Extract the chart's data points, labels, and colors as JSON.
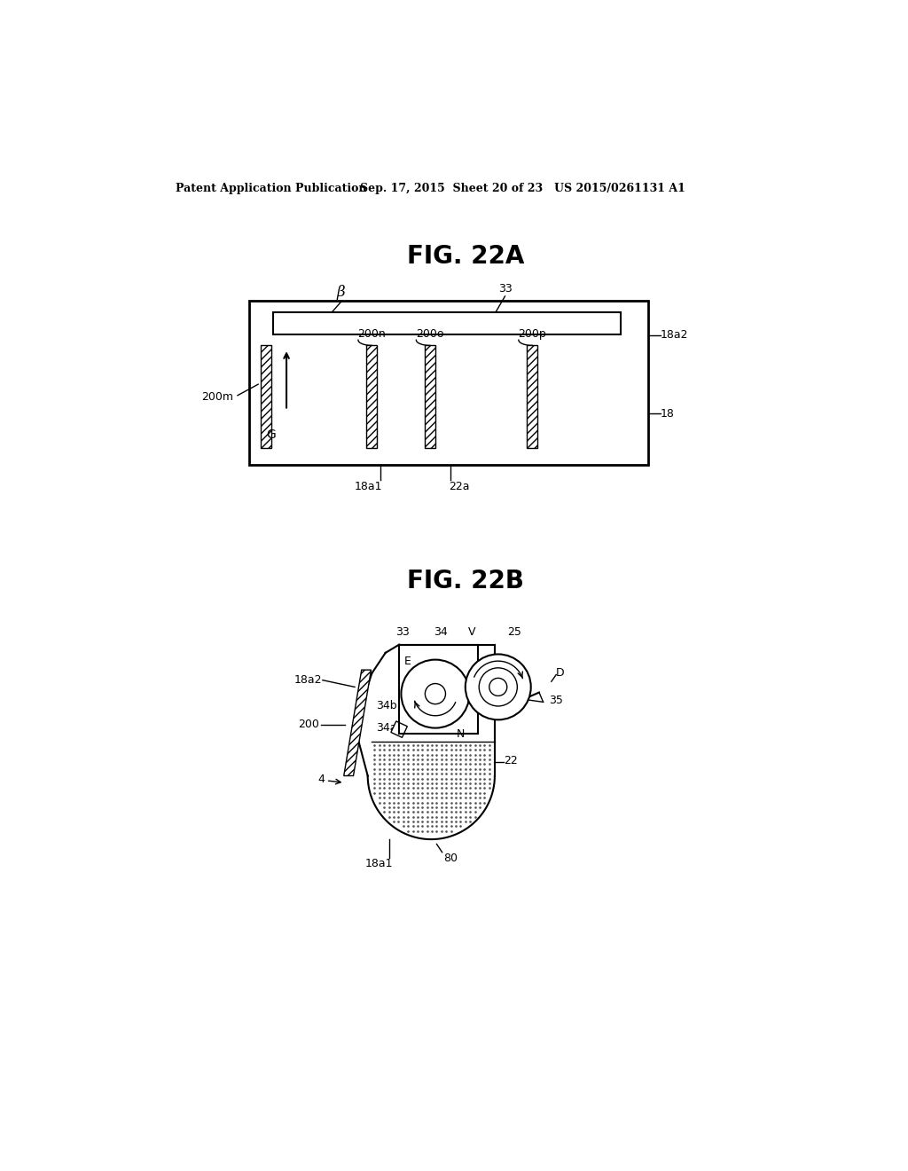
{
  "header_left": "Patent Application Publication",
  "header_mid": "Sep. 17, 2015  Sheet 20 of 23",
  "header_right": "US 2015/0261131 A1",
  "fig22a_title": "FIG. 22A",
  "fig22b_title": "FIG. 22B",
  "bg_color": "#ffffff",
  "line_color": "#000000"
}
